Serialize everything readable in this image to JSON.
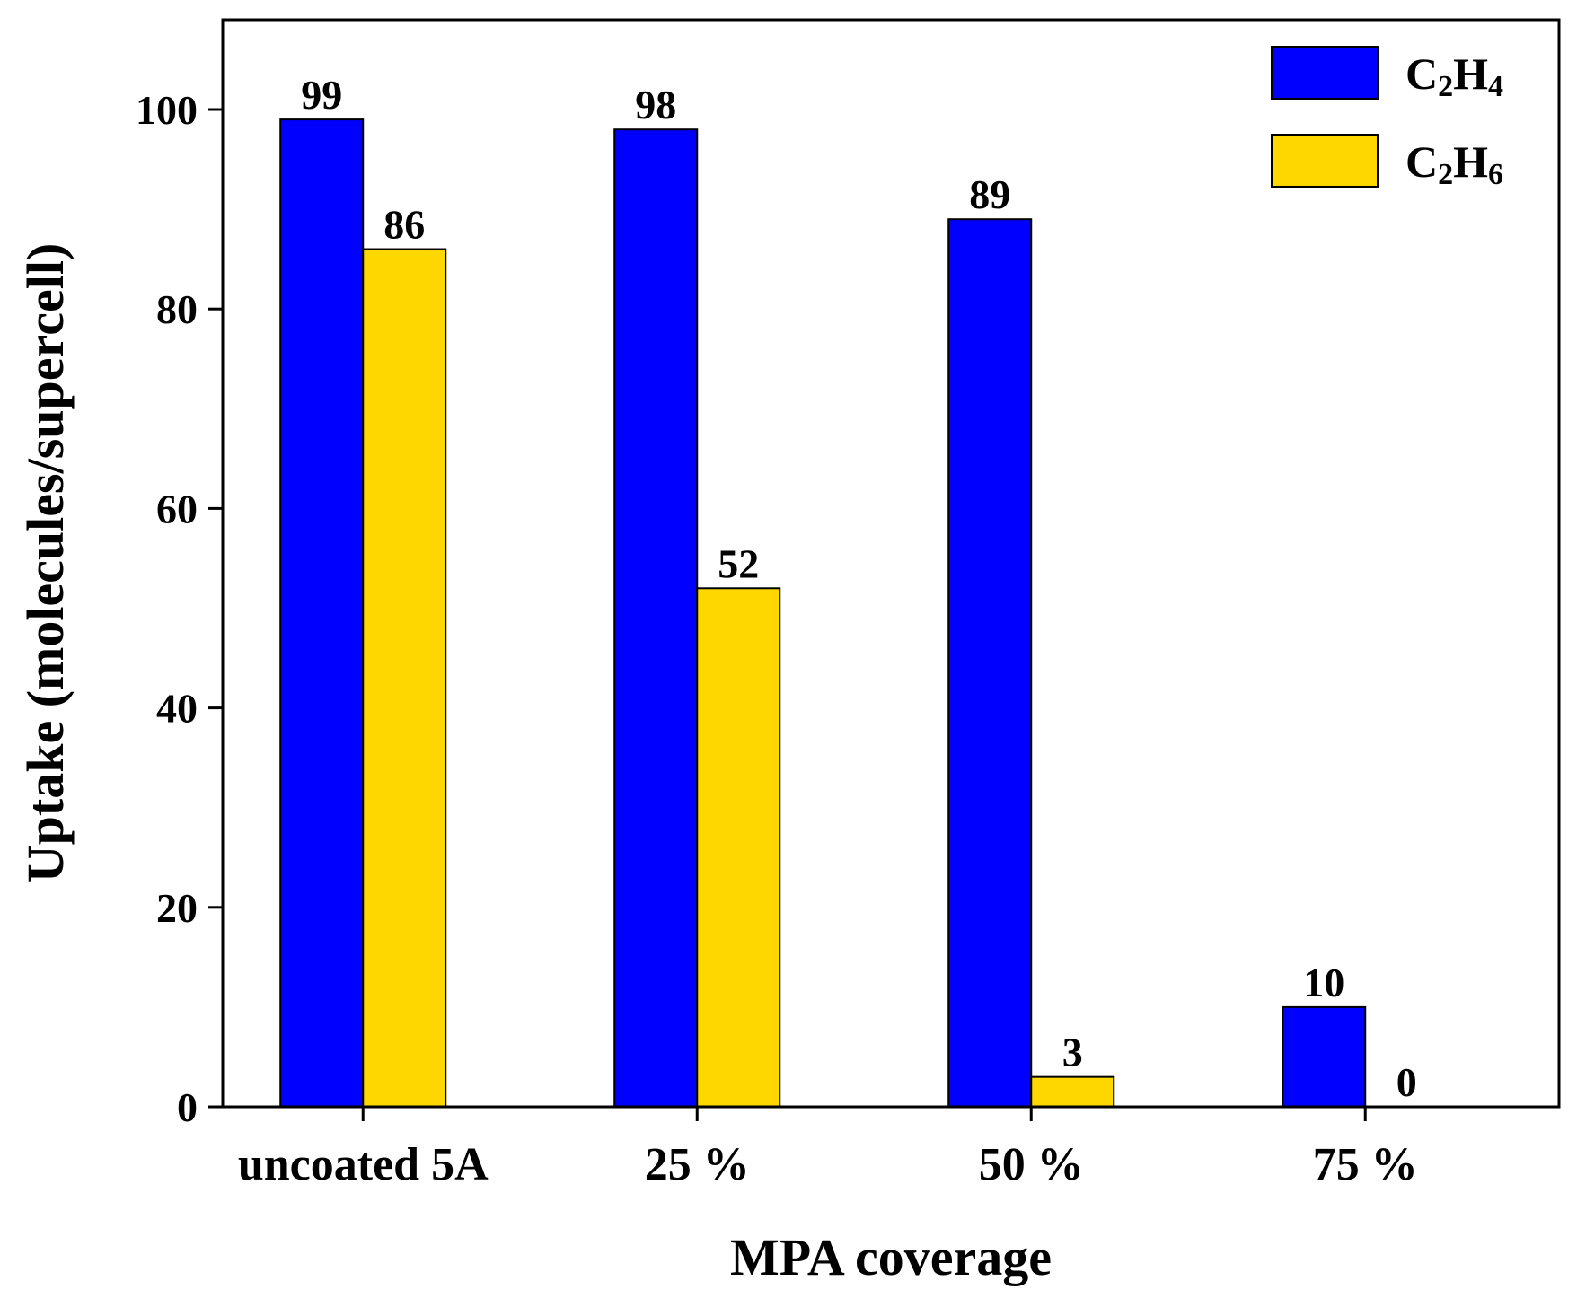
{
  "chart_data": {
    "type": "bar",
    "title": "",
    "xlabel": "MPA coverage",
    "ylabel": "Uptake (molecules/supercell)",
    "categories": [
      "uncoated 5A",
      "25 %",
      "50 %",
      "75 %"
    ],
    "ylim": [
      0,
      109
    ],
    "yticks": [
      0,
      20,
      40,
      60,
      80,
      100
    ],
    "legend_position": "top-right",
    "series": [
      {
        "name": "C2H4",
        "label_main": "C",
        "sub1": "2",
        "label_mid": "H",
        "sub2": "4",
        "color": "#0000ff",
        "values": [
          99,
          98,
          89,
          10
        ]
      },
      {
        "name": "C2H6",
        "label_main": "C",
        "sub1": "2",
        "label_mid": "H",
        "sub2": "6",
        "color": "#ffd700",
        "values": [
          86,
          52,
          3,
          0
        ]
      }
    ],
    "data_labels": [
      [
        "99",
        "98",
        "89",
        "10"
      ],
      [
        "86",
        "52",
        "3",
        "0"
      ]
    ]
  }
}
